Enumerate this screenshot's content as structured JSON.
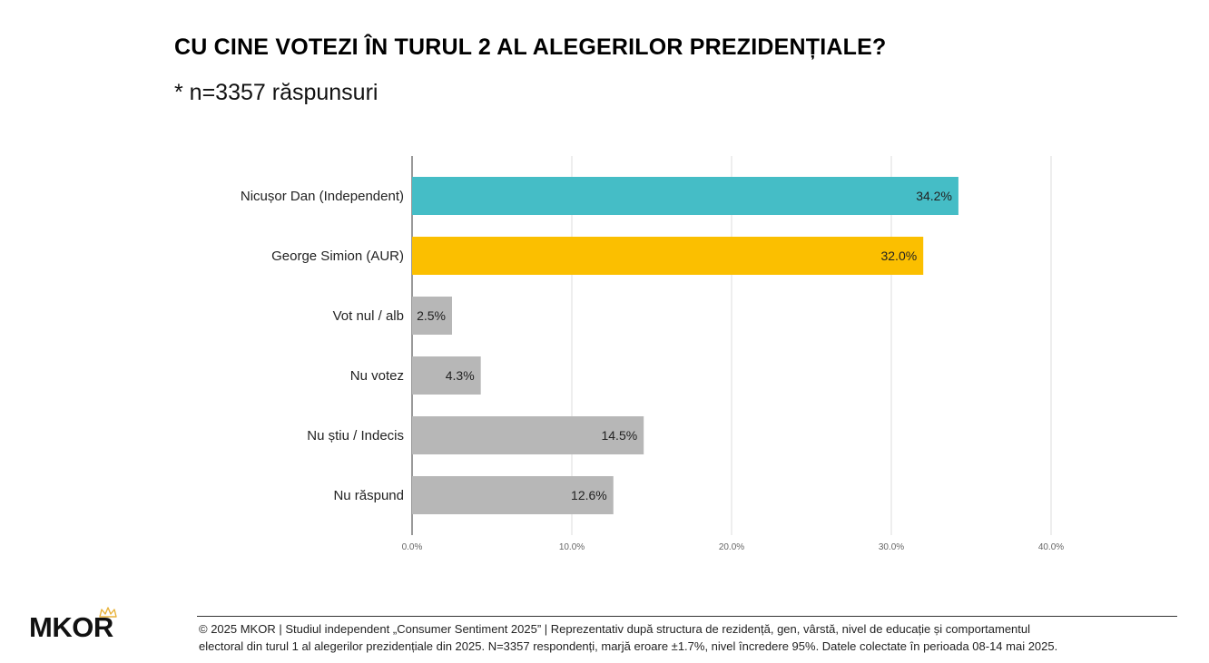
{
  "title": "CU CINE VOTEZI ÎN TURUL 2 AL ALEGERILOR PREZIDENȚIALE?",
  "subtitle": "* n=3357 răspunsuri",
  "footer": {
    "line1": "© 2025 MKOR | Studiul independent „Consumer Sentiment 2025” | Reprezentativ după structura de rezidență, gen, vârstă, nivel de educație și comportamentul",
    "line2": "electoral din turul 1 al alegerilor prezidențiale din 2025. N=3357 respondenți, marjă eroare ±1.7%, nivel încredere 95%. Datele colectate în perioada 08-14 mai 2025."
  },
  "logo": {
    "text": "MKOR",
    "crown_icon": "crown-icon"
  },
  "chart_data": {
    "type": "bar",
    "orientation": "horizontal",
    "categories": [
      "Nicușor Dan (Independent)",
      "George Simion (AUR)",
      "Vot nul / alb",
      "Nu votez",
      "Nu știu / Indecis",
      "Nu răspund"
    ],
    "values": [
      34.2,
      32.0,
      2.5,
      4.3,
      14.5,
      12.6
    ],
    "value_labels": [
      "34.2%",
      "32.0%",
      "2.5%",
      "4.3%",
      "14.5%",
      "12.6%"
    ],
    "colors": [
      "#45BDC6",
      "#FBBF00",
      "#B7B7B7",
      "#B7B7B7",
      "#B7B7B7",
      "#B7B7B7"
    ],
    "x_ticks": [
      0,
      10,
      20,
      30,
      40
    ],
    "x_tick_labels": [
      "0.0%",
      "10.0%",
      "20.0%",
      "30.0%",
      "40.0%"
    ],
    "xlim": [
      0,
      40
    ],
    "grid": true,
    "legend": "none",
    "title": "CU CINE VOTEZI ÎN TURUL 2 AL ALEGERILOR PREZIDENȚIALE?",
    "subtitle": "* n=3357 răspunsuri"
  }
}
